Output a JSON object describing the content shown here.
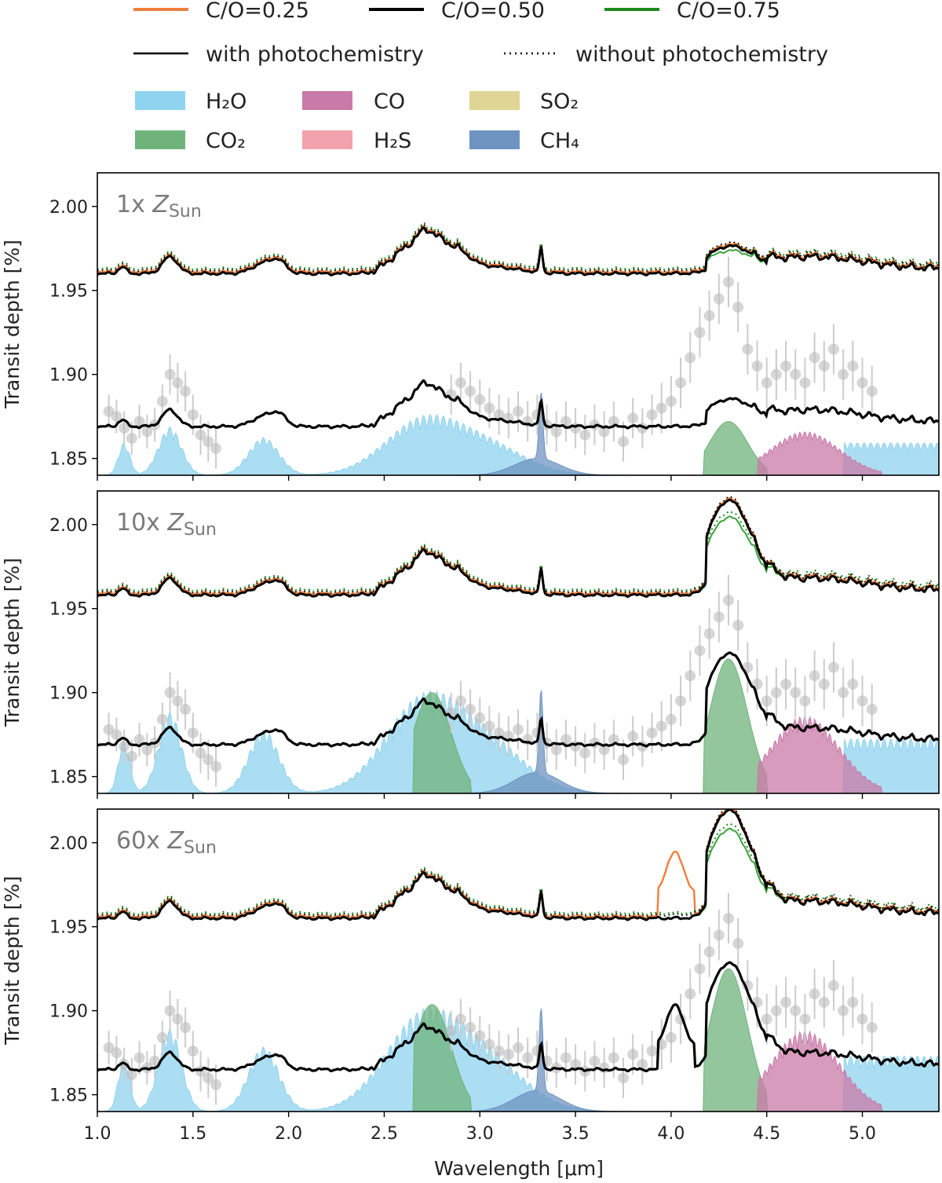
{
  "chart_data": {
    "type": "line",
    "title": "",
    "xlabel": "Wavelength [μm]",
    "ylabel": "Transit depth [%]",
    "xlim": [
      1.0,
      5.4
    ],
    "ylim": [
      1.84,
      2.02
    ],
    "x_ticks": [
      "1.0",
      "1.5",
      "2.0",
      "2.5",
      "3.0",
      "3.5",
      "4.0",
      "4.5",
      "5.0"
    ],
    "y_ticks": [
      "1.85",
      "1.90",
      "1.95",
      "2.00"
    ],
    "legend": {
      "series": [
        {
          "label": "C/O=0.25",
          "color": "#f07f3c"
        },
        {
          "label": "C/O=0.50",
          "color": "#000000"
        },
        {
          "label": "C/O=0.75",
          "color": "#1f8a1f"
        }
      ],
      "styles": [
        {
          "label": "with photochemistry",
          "style": "solid"
        },
        {
          "label": "without photochemistry",
          "style": "dotted"
        }
      ],
      "species": [
        {
          "label": "H₂O",
          "color": "#8fd3ef"
        },
        {
          "label": "CO",
          "color": "#c97aa8"
        },
        {
          "label": "SO₂",
          "color": "#e0d594"
        },
        {
          "label": "CO₂",
          "color": "#6fb37b"
        },
        {
          "label": "H₂S",
          "color": "#f2a2ac"
        },
        {
          "label": "CH₄",
          "color": "#6d93c0"
        }
      ]
    },
    "panels": [
      {
        "label_prefix": "1x ",
        "label_symbol": "Z",
        "label_sub": "Sun",
        "offset_model_base": 1.96,
        "offset_model_peak_4_3": 1.975,
        "shifted_model_base": 1.869,
        "shifted_model_peak_4_3": 1.884,
        "co2_peak": 1.872,
        "co_peak": 1.866,
        "h2o_peak": 1.872
      },
      {
        "label_prefix": "10x ",
        "label_symbol": "Z",
        "label_sub": "Sun",
        "offset_model_base": 1.958,
        "offset_model_peak_4_3": 2.013,
        "shifted_model_base": 1.869,
        "shifted_model_peak_4_3": 1.922,
        "co2_peak": 1.92,
        "co_peak": 1.886,
        "h2o_peak": 1.894
      },
      {
        "label_prefix": "60x ",
        "label_symbol": "Z",
        "label_sub": "Sun",
        "offset_model_base": 1.955,
        "offset_model_peak_4_3": 2.018,
        "shifted_model_base": 1.865,
        "shifted_model_peak_4_3": 1.927,
        "co2_peak": 1.925,
        "co_peak": 1.888,
        "h2o_peak": 1.895
      }
    ],
    "observations": {
      "x": [
        1.06,
        1.1,
        1.14,
        1.18,
        1.22,
        1.26,
        1.3,
        1.34,
        1.38,
        1.42,
        1.46,
        1.5,
        1.54,
        1.58,
        1.62,
        2.85,
        2.9,
        2.95,
        3.0,
        3.05,
        3.1,
        3.15,
        3.2,
        3.25,
        3.3,
        3.35,
        3.4,
        3.45,
        3.5,
        3.55,
        3.6,
        3.65,
        3.7,
        3.75,
        3.8,
        3.85,
        3.9,
        3.95,
        4.0,
        4.05,
        4.1,
        4.15,
        4.2,
        4.25,
        4.3,
        4.35,
        4.4,
        4.45,
        4.5,
        4.55,
        4.6,
        4.65,
        4.7,
        4.75,
        4.8,
        4.85,
        4.9,
        4.95,
        5.0,
        5.05
      ],
      "y": [
        1.878,
        1.875,
        1.868,
        1.862,
        1.872,
        1.866,
        1.87,
        1.884,
        1.9,
        1.895,
        1.89,
        1.876,
        1.864,
        1.86,
        1.856,
        1.888,
        1.895,
        1.89,
        1.885,
        1.88,
        1.876,
        1.874,
        1.878,
        1.872,
        1.876,
        1.87,
        1.866,
        1.872,
        1.868,
        1.864,
        1.87,
        1.866,
        1.872,
        1.86,
        1.874,
        1.868,
        1.876,
        1.88,
        1.884,
        1.895,
        1.91,
        1.925,
        1.935,
        1.945,
        1.955,
        1.94,
        1.915,
        1.905,
        1.895,
        1.9,
        1.905,
        1.9,
        1.895,
        1.91,
        1.905,
        1.915,
        1.9,
        1.905,
        1.895,
        1.89
      ],
      "err": [
        0.01,
        0.01,
        0.01,
        0.01,
        0.01,
        0.01,
        0.01,
        0.01,
        0.012,
        0.012,
        0.012,
        0.012,
        0.012,
        0.012,
        0.012,
        0.012,
        0.012,
        0.012,
        0.012,
        0.012,
        0.012,
        0.012,
        0.012,
        0.012,
        0.012,
        0.012,
        0.012,
        0.012,
        0.012,
        0.012,
        0.012,
        0.012,
        0.012,
        0.012,
        0.012,
        0.012,
        0.012,
        0.015,
        0.015,
        0.015,
        0.015,
        0.015,
        0.015,
        0.015,
        0.015,
        0.015,
        0.015,
        0.015,
        0.015,
        0.015,
        0.015,
        0.015,
        0.015,
        0.015,
        0.015,
        0.015,
        0.015,
        0.015,
        0.015,
        0.015
      ]
    }
  }
}
